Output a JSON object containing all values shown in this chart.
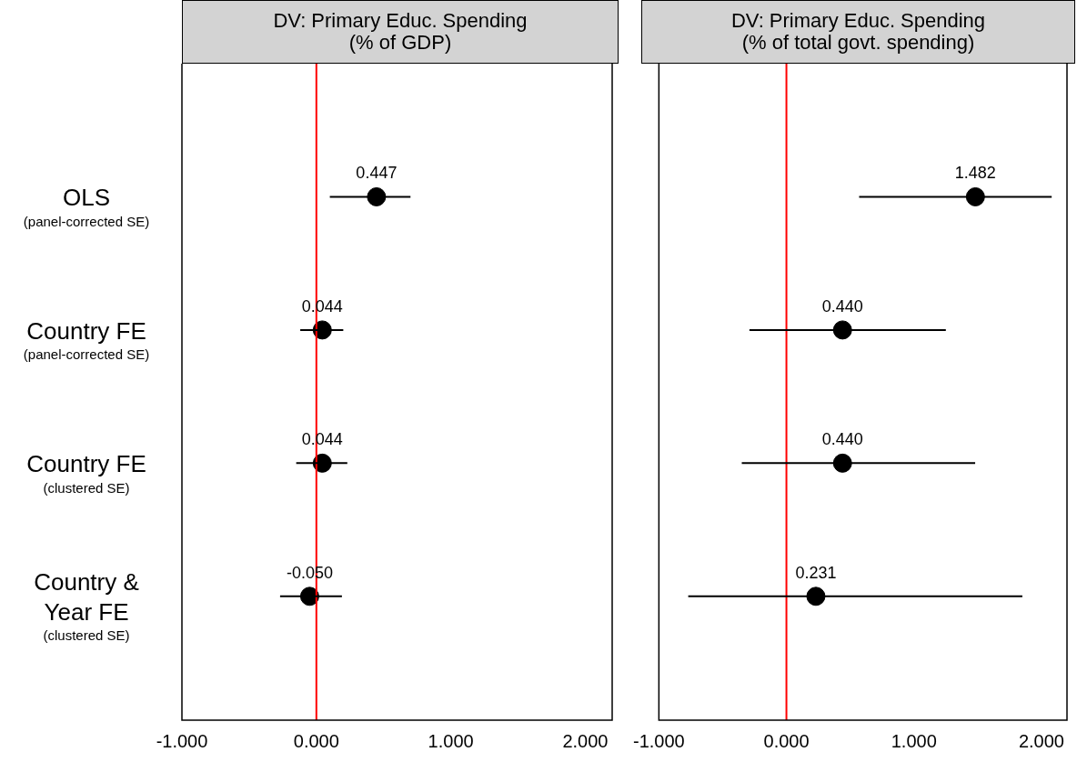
{
  "chart_data": [
    {
      "type": "scatter",
      "title": "DV: Primary Educ. Spending\n(% of GDP)",
      "orientation": "horizontal",
      "categories": [
        "OLS\n(panel-corrected SE)",
        "Country FE\n(panel-corrected SE)",
        "Country FE\n(clustered SE)",
        "Country &\nYear FE\n(clustered SE)"
      ],
      "color": "#000000",
      "values": [
        0.447,
        0.044,
        0.044,
        -0.05
      ],
      "errors": [
        [
          0.1,
          0.7
        ],
        [
          -0.12,
          0.2
        ],
        [
          -0.15,
          0.23
        ],
        [
          -0.27,
          0.19
        ]
      ],
      "value_labels": [
        "0.447",
        "0.044",
        "0.044",
        "-0.050"
      ],
      "xlim": [
        -1,
        2.2
      ],
      "xticks": [
        {
          "value": -1,
          "label": "-1.000"
        },
        {
          "value": 0,
          "label": "0.000"
        },
        {
          "value": 1,
          "label": "1.000"
        },
        {
          "value": 2,
          "label": "2.000"
        }
      ],
      "ref_lines": [
        {
          "axis": "x",
          "value": 0,
          "color": "#ff0000"
        }
      ],
      "marker": "circle",
      "grid": false,
      "legend": false
    },
    {
      "type": "scatter",
      "title": "DV: Primary Educ. Spending\n(% of total govt. spending)",
      "orientation": "horizontal",
      "color": "#000000",
      "values": [
        1.482,
        0.44,
        0.44,
        0.231
      ],
      "errors": [
        [
          0.57,
          2.08
        ],
        [
          -0.29,
          1.25
        ],
        [
          -0.35,
          1.48
        ],
        [
          -0.77,
          1.85
        ]
      ],
      "value_labels": [
        "1.482",
        "0.440",
        "0.440",
        "0.231"
      ],
      "xlim": [
        -1,
        2.2
      ],
      "xticks": [
        {
          "value": -1,
          "label": "-1.000"
        },
        {
          "value": 0,
          "label": "0.000"
        },
        {
          "value": 1,
          "label": "1.000"
        },
        {
          "value": 2,
          "label": "2.000"
        }
      ],
      "ref_lines": [
        {
          "axis": "x",
          "value": 0,
          "color": "#ff0000"
        }
      ],
      "marker": "circle",
      "grid": false,
      "legend": false,
      "tick_labels": "x"
    }
  ]
}
